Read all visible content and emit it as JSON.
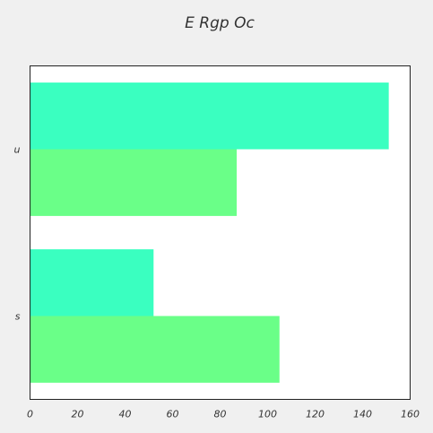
{
  "chart_data": {
    "type": "bar",
    "orientation": "horizontal",
    "title": "E Rgp Oc",
    "xlabel": "",
    "ylabel": "",
    "categories": [
      "u",
      "s"
    ],
    "series": [
      {
        "values": [
          151,
          52
        ],
        "color": "#3affc0"
      },
      {
        "values": [
          87,
          105
        ],
        "color": "#6aff88"
      }
    ],
    "xlim": [
      0,
      160
    ],
    "xticks": [
      0,
      20,
      40,
      60,
      80,
      100,
      120,
      140,
      160
    ],
    "grid": false,
    "legend": "none",
    "plot_background": "#ffffff",
    "page_background": "#f0f0f0"
  }
}
